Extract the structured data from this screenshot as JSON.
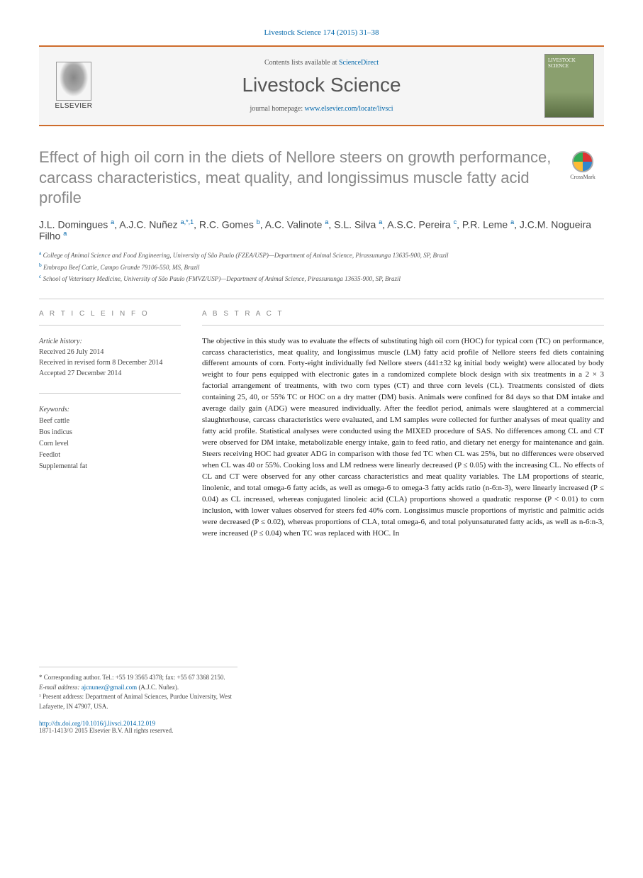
{
  "journal_ref": "Livestock Science 174 (2015) 31–38",
  "header": {
    "contents_prefix": "Contents lists available at ",
    "contents_link": "ScienceDirect",
    "journal_name": "Livestock Science",
    "homepage_prefix": "journal homepage: ",
    "homepage_link": "www.elsevier.com/locate/livsci",
    "elsevier": "ELSEVIER",
    "cover_title": "LIVESTOCK SCIENCE"
  },
  "crossmark": "CrossMark",
  "title": "Effect of high oil corn in the diets of Nellore steers on growth performance, carcass characteristics, meat quality, and longissimus muscle fatty acid profile",
  "authors_html": "J.L. Domingues <sup>a</sup>, A.J.C. Nuñez <sup>a,*,1</sup>, R.C. Gomes <sup>b</sup>, A.C. Valinote <sup>a</sup>, S.L. Silva <sup>a</sup>, A.S.C. Pereira <sup>c</sup>, P.R. Leme <sup>a</sup>, J.C.M. Nogueira Filho <sup>a</sup>",
  "affiliations": [
    {
      "sup": "a",
      "text": "College of Animal Science and Food Engineering, University of São Paulo (FZEA/USP)—Department of Animal Science, Pirassununga 13635-900, SP, Brazil"
    },
    {
      "sup": "b",
      "text": "Embrapa Beef Cattle, Campo Grande 79106-550, MS, Brazil"
    },
    {
      "sup": "c",
      "text": "School of Veterinary Medicine, University of São Paulo (FMVZ/USP)—Department of Animal Science, Pirassununga 13635-900, SP, Brazil"
    }
  ],
  "info_heading": "A R T I C L E  I N F O",
  "abstract_heading": "A B S T R A C T",
  "history": {
    "label": "Article history:",
    "received": "Received 26 July 2014",
    "revised": "Received in revised form 8 December 2014",
    "accepted": "Accepted 27 December 2014"
  },
  "keywords": {
    "label": "Keywords:",
    "items": [
      "Beef cattle",
      "Bos indicus",
      "Corn level",
      "Feedlot",
      "Supplemental fat"
    ]
  },
  "abstract": "The objective in this study was to evaluate the effects of substituting high oil corn (HOC) for typical corn (TC) on performance, carcass characteristics, meat quality, and longissimus muscle (LM) fatty acid profile of Nellore steers fed diets containing different amounts of corn. Forty-eight individually fed Nellore steers (441±32 kg initial body weight) were allocated by body weight to four pens equipped with electronic gates in a randomized complete block design with six treatments in a 2 × 3 factorial arrangement of treatments, with two corn types (CT) and three corn levels (CL). Treatments consisted of diets containing 25, 40, or 55% TC or HOC on a dry matter (DM) basis. Animals were confined for 84 days so that DM intake and average daily gain (ADG) were measured individually. After the feedlot period, animals were slaughtered at a commercial slaughterhouse, carcass characteristics were evaluated, and LM samples were collected for further analyses of meat quality and fatty acid profile. Statistical analyses were conducted using the MIXED procedure of SAS. No differences among CL and CT were observed for DM intake, metabolizable energy intake, gain to feed ratio, and dietary net energy for maintenance and gain. Steers receiving HOC had greater ADG in comparison with those fed TC when CL was 25%, but no differences were observed when CL was 40 or 55%. Cooking loss and LM redness were linearly decreased (P ≤ 0.05) with the increasing CL. No effects of CL and CT were observed for any other carcass characteristics and meat quality variables. The LM proportions of stearic, linolenic, and total omega-6 fatty acids, as well as omega-6 to omega-3 fatty acids ratio (n-6:n-3), were linearly increased (P ≤ 0.04) as CL increased, whereas conjugated linoleic acid (CLA) proportions showed a quadratic response (P < 0.01) to corn inclusion, with lower values observed for steers fed 40% corn. Longissimus muscle proportions of myristic and palmitic acids were decreased (P ≤ 0.02), whereas proportions of CLA, total omega-6, and total polyunsaturated fatty acids, as well as n-6:n-3, were increased (P ≤ 0.04) when TC was replaced with HOC. In",
  "footnotes": {
    "corresponding": "* Corresponding author. Tel.: +55 19 3565 4378; fax: +55 67 3368 2150.",
    "email_label": "E-mail address: ",
    "email": "ajcnunez@gmail.com",
    "email_suffix": " (A.J.C. Nuñez).",
    "present": "¹ Present address: Department of Animal Sciences, Purdue University, West Lafayette, IN 47907, USA."
  },
  "doi": {
    "link": "http://dx.doi.org/10.1016/j.livsci.2014.12.019",
    "copyright": "1871-1413/© 2015 Elsevier B.V. All rights reserved."
  }
}
